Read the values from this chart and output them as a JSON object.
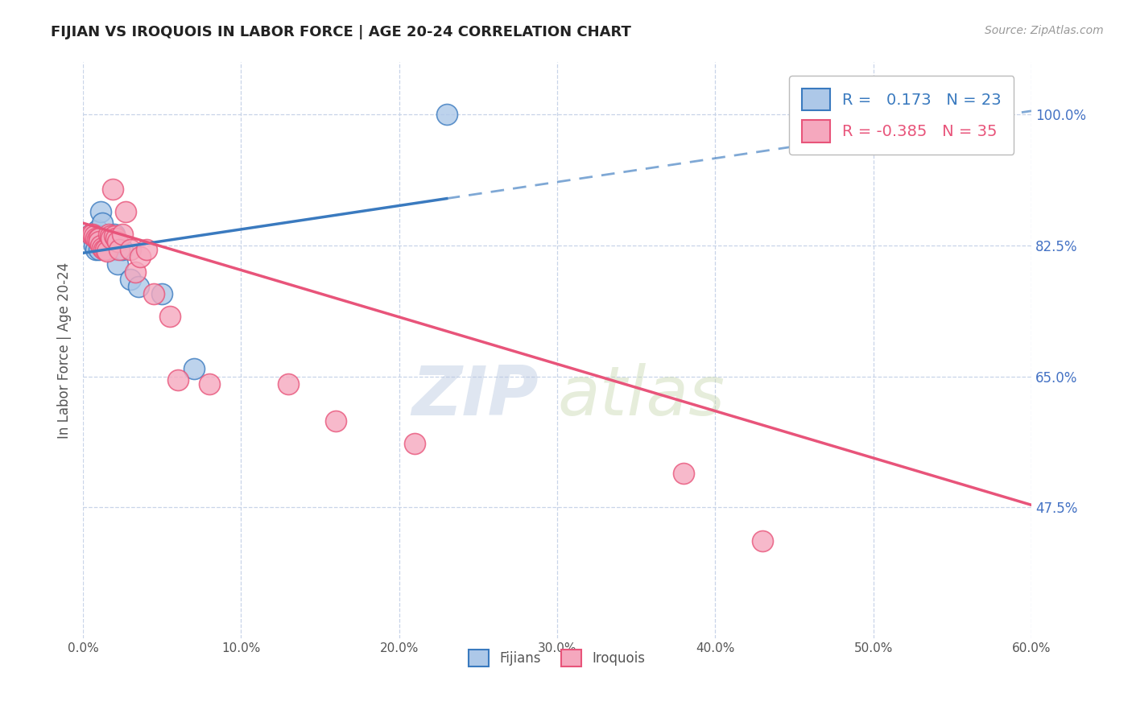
{
  "title": "FIJIAN VS IROQUOIS IN LABOR FORCE | AGE 20-24 CORRELATION CHART",
  "source": "Source: ZipAtlas.com",
  "ylabel": "In Labor Force | Age 20-24",
  "xmin": 0.0,
  "xmax": 0.6,
  "ymin": 0.3,
  "ymax": 1.07,
  "yticks": [
    0.475,
    0.65,
    0.825,
    1.0
  ],
  "ytick_labels": [
    "47.5%",
    "65.0%",
    "82.5%",
    "100.0%"
  ],
  "xticks": [
    0.0,
    0.1,
    0.2,
    0.3,
    0.4,
    0.5,
    0.6
  ],
  "xtick_labels": [
    "0.0%",
    "10.0%",
    "20.0%",
    "30.0%",
    "40.0%",
    "50.0%",
    "60.0%"
  ],
  "fijian_R": 0.173,
  "fijian_N": 23,
  "iroquois_R": -0.385,
  "iroquois_N": 35,
  "fijian_color": "#adc8e8",
  "iroquois_color": "#f5a8be",
  "fijian_line_color": "#3a7abf",
  "iroquois_line_color": "#e8547a",
  "legend_label_fijian": "Fijians",
  "legend_label_iroquois": "Iroquois",
  "watermark_zip": "ZIP",
  "watermark_atlas": "atlas",
  "background_color": "#ffffff",
  "grid_color": "#c8d4e8",
  "fijian_x": [
    0.005,
    0.007,
    0.008,
    0.009,
    0.01,
    0.01,
    0.011,
    0.012,
    0.013,
    0.014,
    0.015,
    0.016,
    0.017,
    0.018,
    0.02,
    0.021,
    0.022,
    0.025,
    0.03,
    0.035,
    0.05,
    0.07,
    0.23
  ],
  "fijian_y": [
    0.84,
    0.825,
    0.82,
    0.845,
    0.838,
    0.82,
    0.87,
    0.855,
    0.835,
    0.83,
    0.825,
    0.82,
    0.825,
    0.835,
    0.84,
    0.82,
    0.8,
    0.82,
    0.78,
    0.77,
    0.76,
    0.66,
    1.0
  ],
  "iroquois_x": [
    0.005,
    0.006,
    0.007,
    0.008,
    0.009,
    0.01,
    0.01,
    0.011,
    0.012,
    0.013,
    0.014,
    0.015,
    0.016,
    0.017,
    0.018,
    0.019,
    0.02,
    0.021,
    0.022,
    0.023,
    0.025,
    0.027,
    0.03,
    0.033,
    0.036,
    0.04,
    0.045,
    0.055,
    0.06,
    0.08,
    0.13,
    0.16,
    0.21,
    0.38,
    0.43
  ],
  "iroquois_y": [
    0.84,
    0.84,
    0.838,
    0.835,
    0.834,
    0.835,
    0.83,
    0.825,
    0.822,
    0.82,
    0.82,
    0.818,
    0.84,
    0.838,
    0.835,
    0.9,
    0.838,
    0.835,
    0.83,
    0.82,
    0.84,
    0.87,
    0.82,
    0.79,
    0.81,
    0.82,
    0.76,
    0.73,
    0.645,
    0.64,
    0.64,
    0.59,
    0.56,
    0.52,
    0.43
  ],
  "fijian_line_x0": 0.0,
  "fijian_line_x_solid_end": 0.23,
  "fijian_line_x1": 0.6,
  "fijian_line_y0": 0.815,
  "fijian_line_y1": 1.005,
  "iroquois_line_x0": 0.0,
  "iroquois_line_x1": 0.6,
  "iroquois_line_y0": 0.855,
  "iroquois_line_y1": 0.478
}
